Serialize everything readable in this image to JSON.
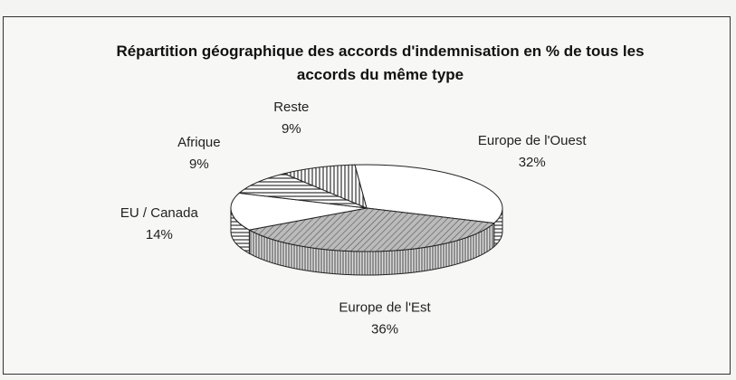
{
  "chart_data": {
    "type": "pie",
    "title": "Répartition géographique des accords d'indemnisation en % de tous les accords du même type",
    "categories": [
      "Europe de l'Ouest",
      "Europe de l'Est",
      "EU / Canada",
      "Afrique",
      "Reste"
    ],
    "values": [
      32,
      36,
      14,
      9,
      9
    ],
    "value_labels": [
      "32%",
      "36%",
      "14%",
      "9%",
      "9%"
    ]
  }
}
